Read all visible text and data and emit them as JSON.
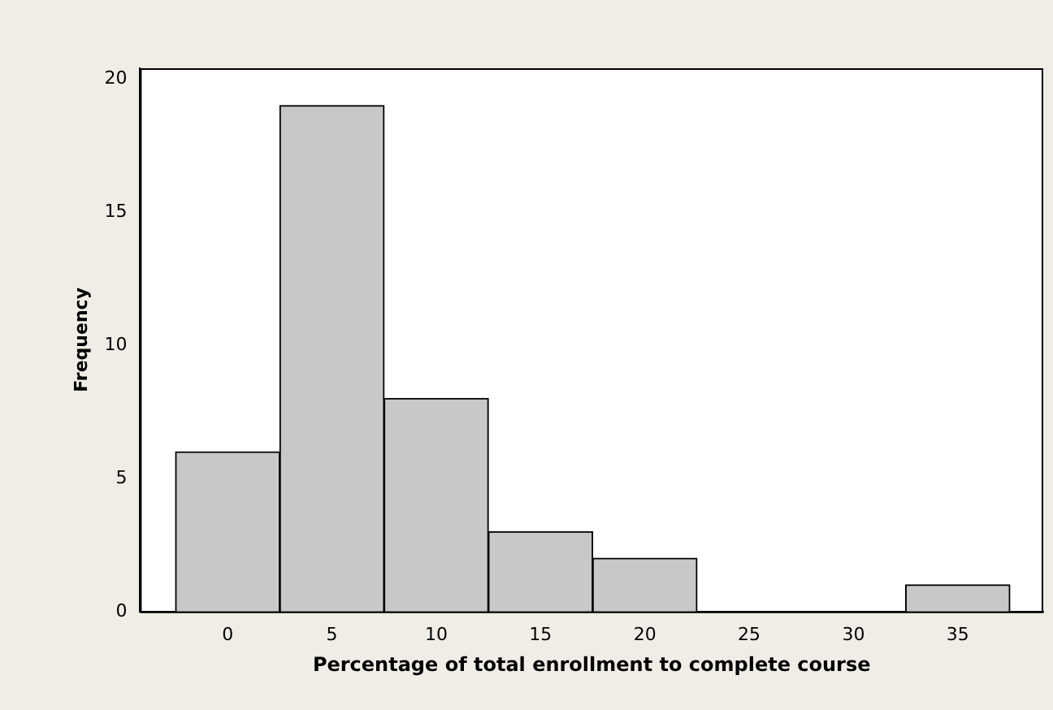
{
  "chart_data": {
    "type": "histogram",
    "xlabel": "Percentage of total enrollment to complete course",
    "ylabel": "Frequency",
    "bins": [
      -2.5,
      2.5,
      7.5,
      12.5,
      17.5,
      22.5,
      27.5,
      32.5,
      37.5
    ],
    "values": [
      6,
      19,
      8,
      3,
      2,
      0,
      0,
      1
    ],
    "color": "#c8c8c8",
    "xlim": [
      -4.2,
      39.1
    ],
    "xticks": [
      0,
      5,
      10,
      15,
      20,
      25,
      30,
      35
    ],
    "ylim": [
      0,
      20.4
    ],
    "yticks": [
      0,
      5,
      10,
      15,
      20
    ],
    "grid": false,
    "legend": false
  }
}
